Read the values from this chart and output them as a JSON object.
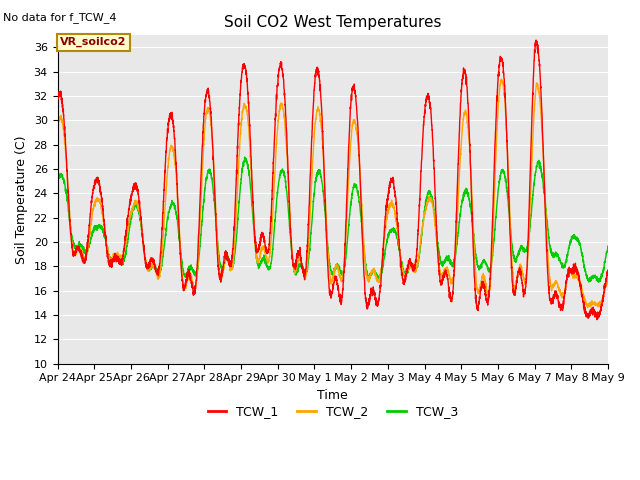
{
  "title": "Soil CO2 West Temperatures",
  "xlabel": "Time",
  "ylabel": "Soil Temperature (C)",
  "no_data_text": "No data for f_TCW_4",
  "vr_label": "VR_soilco2",
  "ylim": [
    10,
    37
  ],
  "yticks": [
    10,
    12,
    14,
    16,
    18,
    20,
    22,
    24,
    26,
    28,
    30,
    32,
    34,
    36
  ],
  "x_labels": [
    "Apr 24",
    "Apr 25",
    "Apr 26",
    "Apr 27",
    "Apr 28",
    "Apr 29",
    "Apr 30",
    "May 1",
    "May 2",
    "May 3",
    "May 4",
    "May 5",
    "May 6",
    "May 7",
    "May 8",
    "May 9"
  ],
  "colors": {
    "TCW_1": "#FF0000",
    "TCW_2": "#FFA500",
    "TCW_3": "#00CC00"
  },
  "background_color": "#E8E8E8",
  "fig_bg": "#FFFFFF",
  "linewidth": 1.0,
  "title_fontsize": 11,
  "label_fontsize": 9,
  "tick_fontsize": 8,
  "legend_fontsize": 9
}
